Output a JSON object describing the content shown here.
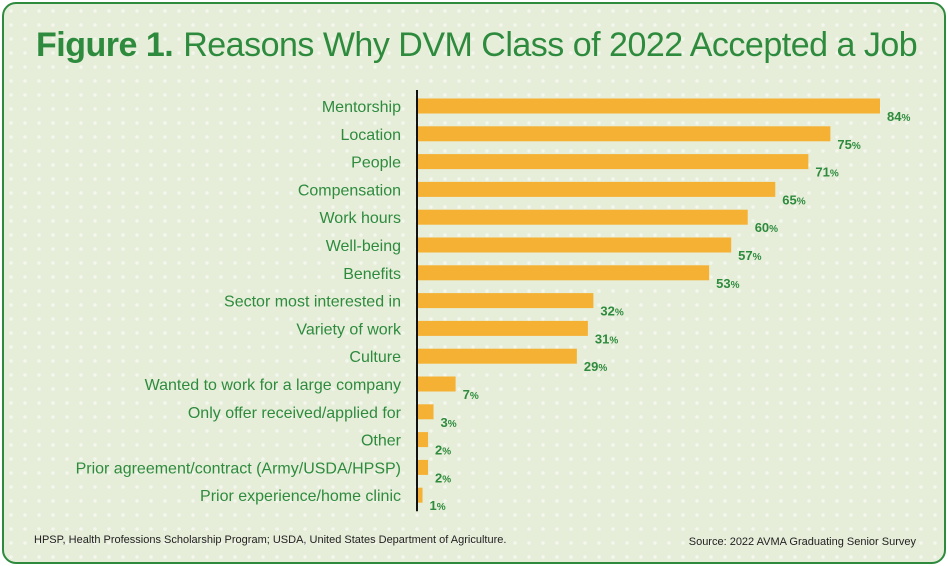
{
  "header": {
    "figure_label": "Figure 1.",
    "title_text": "Reasons Why DVM Class of 2022 Accepted a Job"
  },
  "chart_data": {
    "type": "bar",
    "orientation": "horizontal",
    "title": "Figure 1. Reasons Why DVM Class of 2022 Accepted a Job",
    "categories": [
      "Mentorship",
      "Location",
      "People",
      "Compensation",
      "Work hours",
      "Well-being",
      "Benefits",
      "Sector most interested in",
      "Variety of work",
      "Culture",
      "Wanted to work for a large company",
      "Only offer received/applied for",
      "Other",
      "Prior agreement/contract (Army/USDA/HPSP)",
      "Prior experience/home clinic"
    ],
    "values": [
      84,
      75,
      71,
      65,
      60,
      57,
      53,
      32,
      31,
      29,
      7,
      3,
      2,
      2,
      1
    ],
    "value_suffix": "%",
    "xlim": [
      0,
      84
    ],
    "grid": false,
    "bar_color": "#f4b134",
    "label_color": "#2e8b3e"
  },
  "footer": {
    "footnote": "HPSP, Health Professions Scholarship Program; USDA, United States Department of Agriculture.",
    "source": "Source: 2022 AVMA Graduating Senior Survey"
  }
}
